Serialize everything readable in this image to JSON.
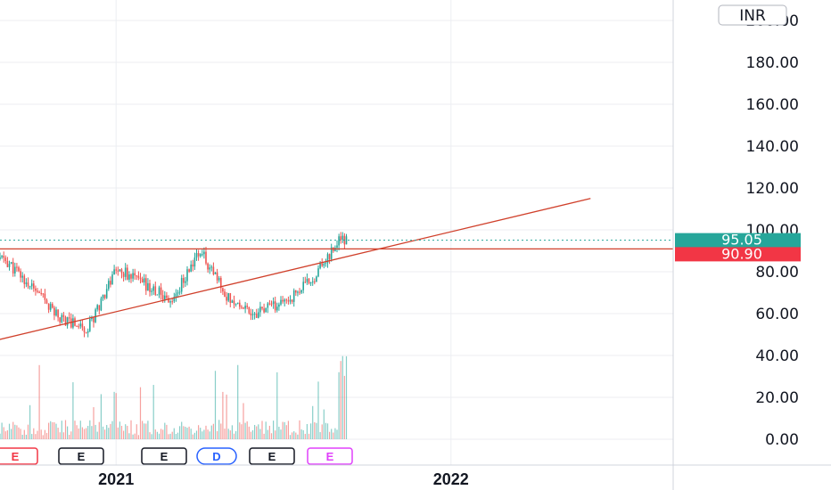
{
  "currency": "INR",
  "price_axis_labels": [
    "200.00",
    "180.00",
    "160.00",
    "140.00",
    "120.00",
    "100.00",
    "80.00",
    "60.00",
    "40.00",
    "20.00",
    "0.00"
  ],
  "time_axis_labels": [
    "2021",
    "2022"
  ],
  "last_price_tag": {
    "text": "95.05",
    "color": "#26a69a"
  },
  "level_tag": {
    "text": "90.90",
    "color": "#f23645"
  },
  "colors": {
    "up": "#26a69a",
    "down": "#ef5350",
    "trendline": "#d0402b",
    "grid": "#eceef2"
  },
  "event_markers": [
    {
      "letter": "E",
      "kind": "earnings",
      "color": "#f23645"
    },
    {
      "letter": "E",
      "kind": "earnings",
      "color": "#131722"
    },
    {
      "letter": "E",
      "kind": "earnings",
      "color": "#131722"
    },
    {
      "letter": "D",
      "kind": "dividend",
      "color": "#2962ff"
    },
    {
      "letter": "E",
      "kind": "earnings",
      "color": "#131722"
    },
    {
      "letter": "E",
      "kind": "earnings-upcoming",
      "color": "#e040fb"
    }
  ],
  "chart_data": {
    "type": "line",
    "title": "",
    "x": [
      "2020-09",
      "2020-10",
      "2020-11",
      "2020-12",
      "2021-01",
      "2021-02",
      "2021-03",
      "2021-04",
      "2021-05",
      "2021-06",
      "2021-07",
      "2021-08",
      "2021-09"
    ],
    "series": [
      {
        "values": [
          86,
          72,
          58,
          53,
          82,
          74,
          66,
          90,
          68,
          60,
          65,
          76,
          95
        ]
      }
    ],
    "xlabel": "",
    "ylabel": "",
    "ylim": [
      -5,
      205
    ],
    "y_ticks": [
      0,
      20,
      40,
      60,
      80,
      100,
      120,
      140,
      160,
      180,
      200
    ],
    "last_price": 95.05,
    "horizontal_level": 90.9,
    "trendline": {
      "from": [
        "2020-08",
        45
      ],
      "to": [
        "2022-06",
        115
      ]
    },
    "volume": "bars shown at bottom, spike near latest session",
    "grid": true,
    "legend": "none"
  }
}
